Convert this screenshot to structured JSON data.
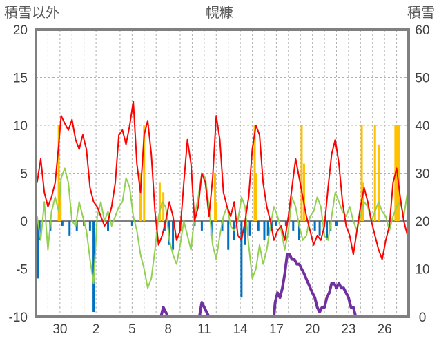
{
  "chart_data": {
    "type": "line",
    "title": "幌糠",
    "left_axis_label": "積雪以外",
    "right_axis_label": "積雪",
    "left_ylim": [
      -10,
      20
    ],
    "right_ylim": [
      0,
      60
    ],
    "left_ticks": [
      "20",
      "15",
      "10",
      "5",
      "0",
      "-5",
      "-10"
    ],
    "right_ticks": [
      "60",
      "50",
      "40",
      "30",
      "20",
      "10",
      "0"
    ],
    "x_tick_labels": [
      "30",
      "2",
      "5",
      "8",
      "11",
      "14",
      "17",
      "20",
      "23",
      "26"
    ],
    "x_tick_days": [
      3,
      6,
      9,
      12,
      15,
      18,
      21,
      24,
      27,
      30
    ],
    "xlim": [
      1,
      32
    ],
    "grid": "dashed",
    "colors": {
      "temperature": "#ff0000",
      "dew_or_min": "#92d050",
      "precip": "#ffc000",
      "negative_bars": "#0070c0",
      "snow": "#7030a0",
      "frame": "#808080"
    },
    "series": [
      {
        "axis": "left",
        "x": [
          1.1,
          1.4,
          1.7,
          2.0,
          2.3,
          2.6,
          2.9,
          3.1,
          3.4,
          3.7,
          4.0,
          4.3,
          4.6,
          4.9,
          5.2,
          5.5,
          5.8,
          6.1,
          6.4,
          6.7,
          7.0,
          7.3,
          7.6,
          7.9,
          8.2,
          8.5,
          8.8,
          9.1,
          9.4,
          9.7,
          10.0,
          10.3,
          10.6,
          10.9,
          11.2,
          11.5,
          11.8,
          12.1,
          12.4,
          12.7,
          13.0,
          13.3,
          13.6,
          13.9,
          14.2,
          14.5,
          14.8,
          15.1,
          15.4,
          15.7,
          16.0,
          16.3,
          16.6,
          16.9,
          17.2,
          17.5,
          17.8,
          18.1,
          18.4,
          18.7,
          19.0,
          19.3,
          19.6,
          19.9,
          20.2,
          20.5,
          20.8,
          21.1,
          21.4,
          21.7,
          22.0,
          22.3,
          22.6,
          22.9,
          23.2,
          23.5,
          23.8,
          24.1,
          24.4,
          24.7,
          25.0,
          25.3,
          25.6,
          25.9,
          26.2,
          26.5,
          26.8,
          27.1,
          27.4,
          27.7,
          28.0,
          28.3,
          28.6,
          28.9,
          29.2,
          29.5,
          29.8,
          30.1,
          30.4,
          30.7,
          31.0,
          31.3,
          31.6,
          31.9
        ],
        "values": [
          4.0,
          6.5,
          3.0,
          1.5,
          2.5,
          4.0,
          8.0,
          11.0,
          10.2,
          9.5,
          10.6,
          8.5,
          7.5,
          9.0,
          7.5,
          3.5,
          2.0,
          1.5,
          0.5,
          -0.5,
          0.0,
          1.5,
          4.0,
          9.0,
          9.5,
          8.0,
          10.0,
          12.5,
          6.0,
          3.0,
          9.0,
          10.5,
          7.0,
          1.0,
          -2.5,
          -1.5,
          0.0,
          2.0,
          0.5,
          -2.0,
          -1.0,
          4.0,
          8.5,
          6.0,
          0.0,
          1.5,
          5.0,
          4.0,
          0.5,
          4.5,
          11.0,
          8.5,
          3.0,
          1.5,
          0.5,
          2.0,
          -1.5,
          -2.0,
          0.0,
          2.5,
          7.5,
          10.0,
          9.0,
          4.0,
          1.5,
          0.0,
          -2.0,
          -1.0,
          -0.5,
          -2.0,
          0.5,
          3.5,
          6.5,
          4.5,
          2.5,
          0.5,
          -1.0,
          -2.5,
          -1.5,
          -2.0,
          -0.5,
          3.5,
          7.0,
          8.5,
          6.0,
          2.0,
          -0.5,
          -1.5,
          -3.5,
          -1.0,
          1.5,
          3.5,
          2.0,
          0.0,
          -1.5,
          -3.0,
          -4.0,
          -2.0,
          -0.5,
          4.0,
          5.5,
          2.5,
          0.0,
          -1.5
        ]
      },
      {
        "axis": "left",
        "x": [
          1.1,
          1.4,
          1.7,
          2.0,
          2.3,
          2.6,
          2.9,
          3.1,
          3.4,
          3.7,
          4.0,
          4.3,
          4.6,
          4.9,
          5.2,
          5.5,
          5.8,
          6.1,
          6.4,
          6.7,
          7.0,
          7.3,
          7.6,
          7.9,
          8.2,
          8.5,
          8.8,
          9.1,
          9.4,
          9.7,
          10.0,
          10.3,
          10.6,
          10.9,
          11.2,
          11.5,
          11.8,
          12.1,
          12.4,
          12.7,
          13.0,
          13.3,
          13.6,
          13.9,
          14.2,
          14.5,
          14.8,
          15.1,
          15.4,
          15.7,
          16.0,
          16.3,
          16.6,
          16.9,
          17.2,
          17.5,
          17.8,
          18.1,
          18.4,
          18.7,
          19.0,
          19.3,
          19.6,
          19.9,
          20.2,
          20.5,
          20.8,
          21.1,
          21.4,
          21.7,
          22.0,
          22.3,
          22.6,
          22.9,
          23.2,
          23.5,
          23.8,
          24.1,
          24.4,
          24.7,
          25.0,
          25.3,
          25.6,
          25.9,
          26.2,
          26.5,
          26.8,
          27.1,
          27.4,
          27.7,
          28.0,
          28.3,
          28.6,
          28.9,
          29.2,
          29.5,
          29.8,
          30.1,
          30.4,
          30.7,
          31.0,
          31.3,
          31.6,
          31.9
        ],
        "values": [
          0.5,
          -2.0,
          2.0,
          -3.0,
          1.0,
          2.5,
          1.0,
          4.5,
          5.5,
          4.0,
          0.0,
          -0.5,
          2.0,
          0.5,
          -1.0,
          -4.0,
          -6.5,
          0.5,
          2.0,
          0.0,
          1.0,
          -0.5,
          0.5,
          1.5,
          2.0,
          4.5,
          3.5,
          0.5,
          -1.0,
          -3.5,
          -5.0,
          -7.0,
          -6.0,
          -3.0,
          0.5,
          2.0,
          1.5,
          -2.0,
          -3.5,
          -4.5,
          -2.5,
          0.0,
          -1.5,
          -3.0,
          0.5,
          2.5,
          5.0,
          4.5,
          1.5,
          -2.5,
          -4.0,
          -1.5,
          0.5,
          1.5,
          -0.5,
          -1.0,
          0.0,
          2.5,
          1.5,
          -2.5,
          -6.0,
          -5.0,
          -2.5,
          -4.5,
          -3.0,
          -0.5,
          1.5,
          0.5,
          -1.0,
          -3.0,
          -1.0,
          2.5,
          1.5,
          -0.5,
          -2.0,
          -1.5,
          0.5,
          1.0,
          2.5,
          1.5,
          -1.5,
          -2.0,
          0.5,
          3.0,
          2.0,
          1.0,
          0.5,
          1.5,
          0.0,
          -1.0,
          0.5,
          2.0,
          1.5,
          0.0,
          1.0,
          2.0,
          1.0,
          0.5,
          -1.0,
          0.5,
          1.5,
          2.0,
          0.5,
          3.0
        ]
      },
      {
        "axis": "left",
        "type": "bar",
        "x": [
          2.9,
          3.05,
          9.7,
          10.0,
          11.3,
          11.6,
          15.9,
          16.0,
          19.2,
          19.3,
          23.1,
          23.3,
          28.1,
          28.2,
          29.2,
          29.5,
          30.9,
          31.0,
          31.2
        ],
        "values": [
          10.0,
          4.0,
          5.0,
          10.0,
          4.0,
          3.0,
          5.0,
          2.0,
          10.0,
          5.0,
          10.0,
          6.0,
          10.0,
          4.0,
          10.0,
          8.0,
          10.0,
          10.0,
          10.0
        ]
      },
      {
        "axis": "left",
        "type": "bar",
        "x": [
          1.15,
          1.3,
          2.2,
          3.2,
          3.8,
          4.4,
          5.0,
          5.5,
          5.8,
          7.0,
          9.0,
          11.7,
          12.1,
          12.4,
          13.0,
          14.2,
          14.8,
          15.6,
          16.5,
          17.0,
          17.5,
          18.1,
          18.4,
          18.8,
          19.5,
          20.0,
          20.3,
          20.6,
          21.0,
          21.8,
          22.4,
          22.9,
          24.2,
          24.6,
          25.2,
          25.5,
          26.0
        ],
        "values": [
          -6.0,
          -2.0,
          -1.0,
          -0.5,
          -1.5,
          -1.0,
          -0.5,
          -1.0,
          -9.5,
          -1.0,
          -0.5,
          -1.0,
          -2.5,
          -3.0,
          -1.0,
          -0.5,
          -1.0,
          -1.5,
          -1.0,
          -3.0,
          -2.0,
          -8.0,
          -2.5,
          -1.5,
          -1.0,
          -2.0,
          -1.5,
          -1.0,
          -0.5,
          -0.5,
          -1.0,
          -2.0,
          -1.0,
          -1.5,
          -2.0,
          -1.0,
          -0.5
        ]
      },
      {
        "axis": "right",
        "x": [
          1.0,
          11.2,
          11.4,
          11.6,
          11.8,
          12.0,
          14.4,
          14.6,
          14.8,
          15.0,
          15.2,
          15.4,
          17.0,
          20.8,
          20.9,
          21.1,
          21.3,
          21.5,
          21.7,
          21.9,
          22.1,
          22.3,
          22.5,
          22.7,
          22.9,
          23.1,
          23.3,
          24.0,
          24.0,
          24.2,
          24.4,
          24.6,
          24.8,
          25.0,
          25.2,
          25.4,
          25.6,
          25.8,
          26.0,
          26.2,
          26.4,
          26.6,
          26.8,
          27.0,
          27.2,
          27.4,
          27.6,
          27.8,
          28.0,
          28.2,
          32.0
        ],
        "values": [
          0,
          0,
          0,
          2,
          1,
          0,
          0,
          0,
          3,
          2,
          1,
          0,
          0,
          0,
          3,
          5,
          4,
          6,
          9,
          13,
          13,
          12,
          12,
          11,
          11,
          10,
          9,
          5,
          5,
          4,
          2,
          1,
          2,
          2,
          4,
          5,
          7,
          7,
          6,
          7,
          6,
          6,
          5,
          4,
          2,
          2,
          0,
          0,
          0,
          0,
          0
        ]
      }
    ]
  }
}
